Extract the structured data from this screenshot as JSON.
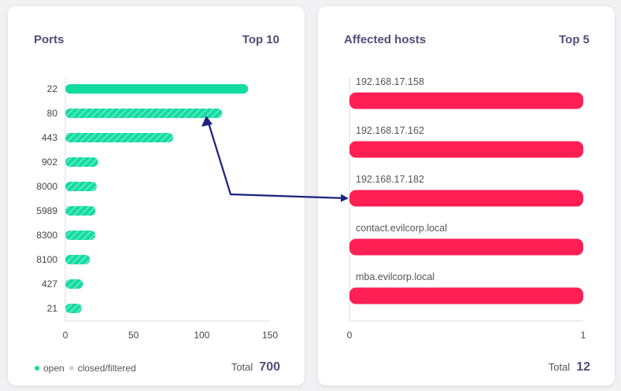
{
  "colors": {
    "open": "#12dba0",
    "closed": "#cccccc",
    "hosts_bar": "#ff1f55",
    "title": "#4e4f7a",
    "arrow": "#1a2380"
  },
  "ports_card": {
    "title": "Ports",
    "top": "Top 10",
    "legend": {
      "open": "open",
      "closed": "closed/filtered"
    },
    "total_label": "Total",
    "total_value": "700"
  },
  "hosts_card": {
    "title": "Affected hosts",
    "top": "Top 5",
    "total_label": "Total",
    "total_value": "12"
  },
  "chart_data": [
    {
      "type": "bar",
      "orientation": "horizontal",
      "categories": [
        "22",
        "80",
        "443",
        "902",
        "8000",
        "5989",
        "8300",
        "8100",
        "427",
        "21"
      ],
      "values": [
        134,
        115,
        79,
        24,
        23,
        22,
        22,
        18,
        13,
        12
      ],
      "xlim": [
        0,
        150
      ],
      "xticks": [
        0,
        50,
        100,
        150
      ],
      "grid": false
    },
    {
      "type": "bar",
      "orientation": "horizontal",
      "categories": [
        "192.168.17.158",
        "192.168.17.162",
        "192.168.17.182",
        "contact.evilcorp.local",
        "mba.evilcorp.local"
      ],
      "values": [
        1,
        1,
        1,
        1,
        1
      ],
      "xlim": [
        0,
        1
      ],
      "xticks": [
        0,
        1
      ],
      "grid": false
    }
  ]
}
